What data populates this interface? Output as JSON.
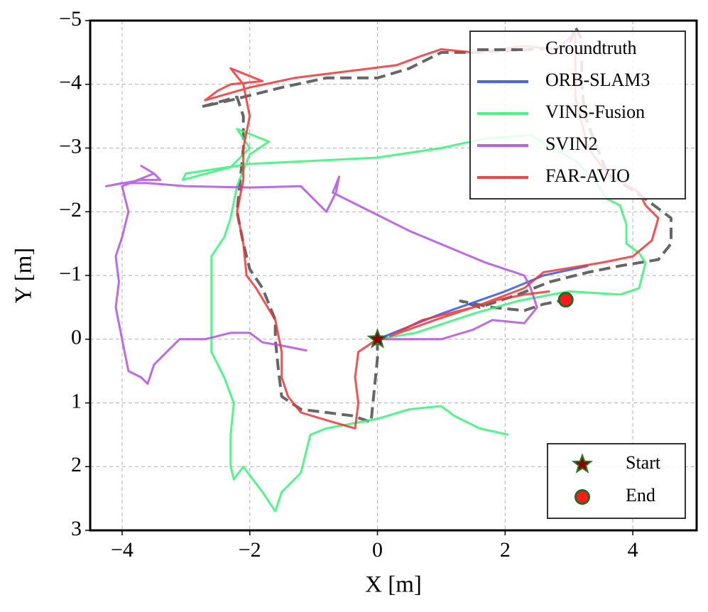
{
  "chart_data": {
    "type": "line",
    "xlabel": "X [m]",
    "ylabel": "Y [m]",
    "xlim": [
      -4.5,
      5
    ],
    "ylim": [
      3,
      -5
    ],
    "xticks": [
      {
        "value": -4,
        "label": "−4"
      },
      {
        "value": -2,
        "label": "−2"
      },
      0,
      2,
      4
    ],
    "yticks": [
      {
        "value": -5,
        "label": "−5"
      },
      {
        "value": -4,
        "label": "−4"
      },
      {
        "value": -3,
        "label": "−3"
      },
      {
        "value": -2,
        "label": "−2"
      },
      {
        "value": -1,
        "label": "−1"
      },
      0,
      1,
      2,
      3
    ],
    "grid": true,
    "legend": "upper right",
    "series": [
      {
        "name": "Groundtruth",
        "color": "#555555",
        "linestyle": "dashed",
        "x": [
          0,
          0,
          -0.05,
          -0.1,
          -0.4,
          -0.8,
          -1.2,
          -1.5,
          -1.55,
          -1.6,
          -1.6,
          -1.8,
          -2.0,
          -2.1,
          -2.2,
          -2.15,
          -2.1,
          -2.1,
          -2.2,
          -2.75,
          -2.3,
          -1.5,
          -0.8,
          0,
          0.5,
          1.0,
          1.5,
          2.5,
          3.0,
          3.1,
          3.2,
          3.2,
          3.25,
          3.6,
          4.2,
          4.6,
          4.6,
          4.4,
          3.8,
          3.3,
          2.7,
          2.2,
          1.6,
          1.3,
          1.8,
          2.3,
          2.6,
          2.95
        ],
        "y": [
          0,
          0.3,
          0.8,
          1.3,
          1.2,
          1.15,
          1.1,
          0.9,
          0.5,
          0,
          -0.3,
          -0.8,
          -1.1,
          -1.5,
          -2.0,
          -2.5,
          -3.0,
          -3.5,
          -3.8,
          -3.65,
          -3.75,
          -3.95,
          -4.1,
          -4.1,
          -4.25,
          -4.5,
          -4.5,
          -4.55,
          -4.6,
          -4.9,
          -4.7,
          -4.0,
          -3.5,
          -2.6,
          -2.2,
          -1.9,
          -1.5,
          -1.25,
          -1.15,
          -1.05,
          -0.9,
          -0.7,
          -0.5,
          -0.6,
          -0.5,
          -0.45,
          -0.55,
          -0.62
        ]
      },
      {
        "name": "ORB-SLAM3",
        "color": "#3355ee",
        "linestyle": "solid",
        "x": [
          0,
          1.0,
          2.0,
          2.6,
          3.3
        ],
        "y": [
          0,
          -0.4,
          -0.75,
          -1.0,
          -1.15
        ]
      },
      {
        "name": "VINS-Fusion",
        "color": "#33f577",
        "linestyle": "solid",
        "x": [
          0,
          0.6,
          1.5,
          2.2,
          3.0,
          3.8,
          4.1,
          4.2,
          4.1,
          3.9,
          3.9,
          3.8,
          3.6,
          3.4,
          3.1,
          2.4,
          1.7,
          1.0,
          0.0,
          -1.0,
          -2.0,
          -3.0,
          -3.05,
          -2.3,
          -2.0,
          -2.2,
          -1.7,
          -2.0,
          -2.2,
          -2.3,
          -2.4,
          -2.6,
          -2.6,
          -2.6,
          -2.6,
          -2.4,
          -2.25,
          -2.3,
          -2.3,
          -2.25,
          -2.1,
          -1.8,
          -1.6,
          -1.5,
          -1.2,
          -1.1,
          -1.05,
          -0.8,
          0,
          0.5,
          1.0,
          1.2,
          1.6,
          2.05
        ],
        "y": [
          0,
          -0.1,
          -0.4,
          -0.6,
          -0.75,
          -0.7,
          -0.8,
          -1.2,
          -1.35,
          -1.5,
          -1.8,
          -2.1,
          -2.2,
          -2.5,
          -2.8,
          -3.2,
          -3.15,
          -3.0,
          -2.85,
          -2.8,
          -2.75,
          -2.6,
          -2.5,
          -2.7,
          -3.0,
          -3.3,
          -3.1,
          -2.9,
          -2.4,
          -1.9,
          -1.6,
          -1.3,
          -0.8,
          -0.4,
          0.2,
          0.6,
          1.0,
          1.5,
          2.0,
          2.2,
          2.0,
          2.4,
          2.7,
          2.4,
          2.1,
          1.7,
          1.5,
          1.4,
          1.25,
          1.1,
          1.05,
          1.2,
          1.4,
          1.5
        ]
      },
      {
        "name": "SVIN2",
        "color": "#b050e0",
        "linestyle": "solid",
        "x": [
          0,
          0.5,
          1.0,
          1.5,
          1.8,
          2.3,
          2.5,
          2.4,
          2.3,
          1.7,
          0.5,
          -0.7,
          -0.6,
          -0.65,
          -0.8,
          -1.2,
          -2.0,
          -3.0,
          -3.6,
          -4.0,
          -4.25,
          -3.7,
          -3.4,
          -3.5,
          -3.7,
          -3.5,
          -4.0,
          -3.9,
          -4.0,
          -4.1,
          -4.05,
          -4.1,
          -4.0,
          -3.9,
          -3.7,
          -3.6,
          -3.5,
          -3.2,
          -3.1,
          -2.7,
          -2.3,
          -2.0,
          -1.8,
          -1.5,
          -1.1
        ],
        "y": [
          0,
          0,
          0.0,
          -0.15,
          -0.3,
          -0.25,
          -0.5,
          -0.8,
          -1.0,
          -1.2,
          -1.7,
          -2.3,
          -2.55,
          -2.3,
          -2.0,
          -2.4,
          -2.38,
          -2.4,
          -2.45,
          -2.45,
          -2.4,
          -2.5,
          -2.5,
          -2.6,
          -2.72,
          -2.6,
          -2.4,
          -2.0,
          -1.6,
          -1.3,
          -0.9,
          -0.5,
          0,
          0.5,
          0.6,
          0.7,
          0.4,
          0.1,
          0,
          0,
          -0.1,
          -0.1,
          0.05,
          0.1,
          0.18
        ]
      },
      {
        "name": "FAR-AVIO",
        "color": "#f03232",
        "linestyle": "solid",
        "x": [
          0,
          -0.3,
          -0.35,
          -0.3,
          -0.35,
          -0.7,
          -1.2,
          -1.4,
          -1.5,
          -1.5,
          -1.6,
          -1.9,
          -2.05,
          -2.1,
          -2.2,
          -2.1,
          -2.1,
          -2.0,
          -2.1,
          -2.3,
          -1.8,
          -2.3,
          -2.5,
          -2.7,
          -2.0,
          -1.3,
          -0.5,
          0.3,
          0.7,
          1.0,
          1.5,
          2.3,
          2.8,
          3.1,
          3.1,
          3.1,
          3.3,
          3.6,
          4.1,
          4.2,
          4.4,
          4.3,
          4.0,
          3.5,
          2.6,
          2.3,
          1.5,
          0.7,
          0.2,
          0.9,
          1.8,
          2.3,
          2.7
        ],
        "y": [
          0,
          0.2,
          0.6,
          1.0,
          1.4,
          1.3,
          1.15,
          0.9,
          0.6,
          0.2,
          -0.3,
          -0.8,
          -1.0,
          -1.5,
          -2.0,
          -2.5,
          -3.0,
          -3.5,
          -4.0,
          -4.25,
          -4.05,
          -4.0,
          -3.9,
          -3.75,
          -3.95,
          -4.1,
          -4.2,
          -4.3,
          -4.45,
          -4.55,
          -4.5,
          -4.6,
          -4.55,
          -4.8,
          -4.4,
          -3.8,
          -3.0,
          -2.6,
          -2.3,
          -2.1,
          -1.9,
          -1.55,
          -1.3,
          -1.2,
          -1.05,
          -0.8,
          -0.5,
          -0.3,
          -0.05,
          -0.3,
          -0.6,
          -0.7,
          -0.75
        ]
      }
    ],
    "markers": [
      {
        "name": "Start",
        "marker": "star",
        "color": "#8b0000",
        "edgecolor": "#2a7a2a",
        "x": 0,
        "y": 0
      },
      {
        "name": "End",
        "marker": "circle",
        "color": "#ff1a1a",
        "edgecolor": "#1f6a1f",
        "x": 2.95,
        "y": -0.62
      }
    ],
    "marker_legend": "lower right"
  }
}
